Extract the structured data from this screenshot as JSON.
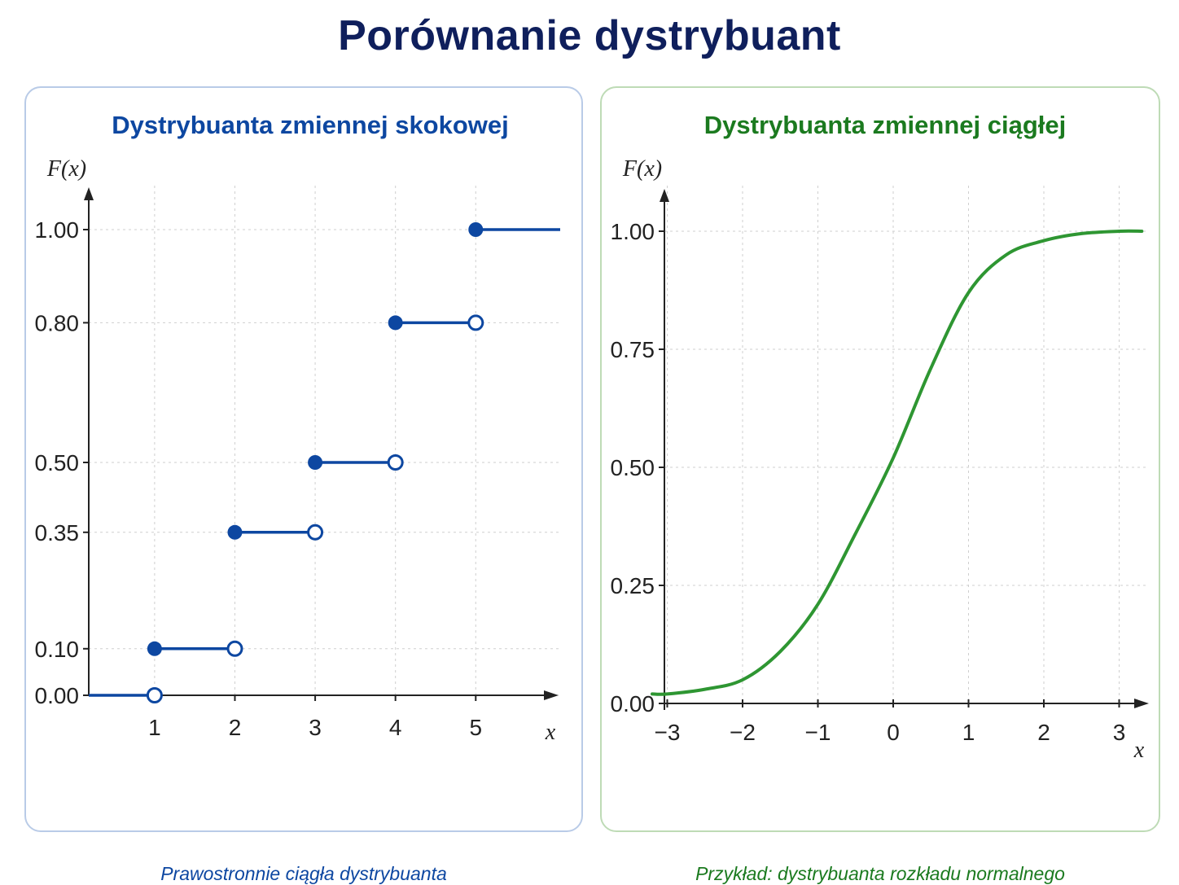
{
  "title": "Porównanie dystrybuant",
  "colors": {
    "title": "#0f1f5c",
    "discrete": "#0d47a1",
    "continuous": "#2e9632",
    "continuous_title": "#1b7a1f",
    "axis": "#222222",
    "grid": "#cfcfcf"
  },
  "chart_data": [
    {
      "type": "line",
      "variant": "step",
      "title": "Dystrybuanta zmiennej skokowej",
      "ylabel": "F(x)",
      "xlabel": "x",
      "caption": "Prawostronnie ciągła dystrybuanta",
      "x_ticks": [
        "1",
        "2",
        "3",
        "4",
        "5"
      ],
      "y_ticks": [
        "0.00",
        "0.10",
        "0.35",
        "0.50",
        "0.80",
        "1.00"
      ],
      "steps": [
        {
          "x_start": null,
          "x_end": 1,
          "y": 0.0
        },
        {
          "x_start": 1,
          "x_end": 2,
          "y": 0.1
        },
        {
          "x_start": 2,
          "x_end": 3,
          "y": 0.35
        },
        {
          "x_start": 3,
          "x_end": 4,
          "y": 0.5
        },
        {
          "x_start": 4,
          "x_end": 5,
          "y": 0.8
        },
        {
          "x_start": 5,
          "x_end": null,
          "y": 1.0
        }
      ],
      "xlim": [
        0.1,
        5.95
      ],
      "grid": true
    },
    {
      "type": "line",
      "title": "Dystrybuanta zmiennej ciągłej",
      "ylabel": "F(x)",
      "xlabel": "x",
      "caption": "Przykład: dystrybuanta rozkładu normalnego",
      "x_ticks": [
        "−3",
        "−2",
        "−1",
        "0",
        "1",
        "2",
        "3"
      ],
      "y_ticks": [
        "0.00",
        "0.25",
        "0.50",
        "0.75",
        "1.00"
      ],
      "x": [
        -3.2,
        -3.0,
        -2.5,
        -2.0,
        -1.5,
        -1.0,
        -0.5,
        0.0,
        0.5,
        1.0,
        1.5,
        2.0,
        2.5,
        3.0,
        3.3
      ],
      "y": [
        0.02,
        0.02,
        0.03,
        0.05,
        0.11,
        0.21,
        0.36,
        0.52,
        0.71,
        0.87,
        0.95,
        0.98,
        0.995,
        1.0,
        1.0
      ],
      "xlim": [
        -3.25,
        3.4
      ],
      "ylim": [
        0,
        1
      ],
      "grid": true
    }
  ]
}
